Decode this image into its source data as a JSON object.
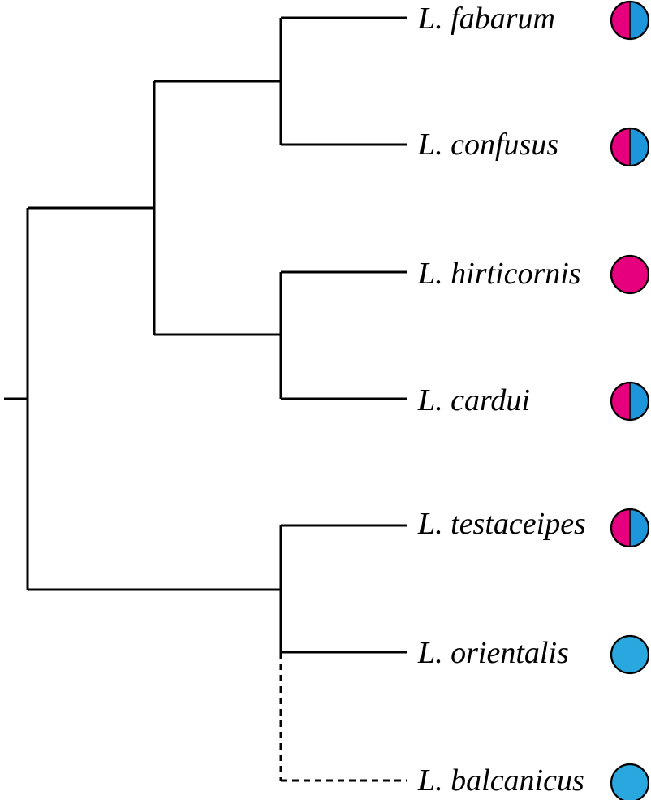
{
  "colors": {
    "magenta": "#e6007e",
    "blue": "#1e96dc",
    "light_blue": "#29a8e0",
    "line": "#000000"
  },
  "taxa": [
    {
      "label": "L. fabarum",
      "marker": "half-magenta-blue"
    },
    {
      "label": "L. confusus",
      "marker": "half-magenta-blue"
    },
    {
      "label": "L. hirticornis",
      "marker": "magenta"
    },
    {
      "label": "L. cardui",
      "marker": "half-magenta-blue"
    },
    {
      "label": "L. testaceipes",
      "marker": "half-magenta-blue"
    },
    {
      "label": "L. orientalis",
      "marker": "blue"
    },
    {
      "label": "L. balcanicus",
      "marker": "blue"
    }
  ],
  "topology": "(((L. fabarum, L. confusus), (L. hirticornis, L. cardui)), (L. testaceipes, L. orientalis, L. balcanicus))",
  "uncertain_branches": [
    "L. balcanicus"
  ]
}
